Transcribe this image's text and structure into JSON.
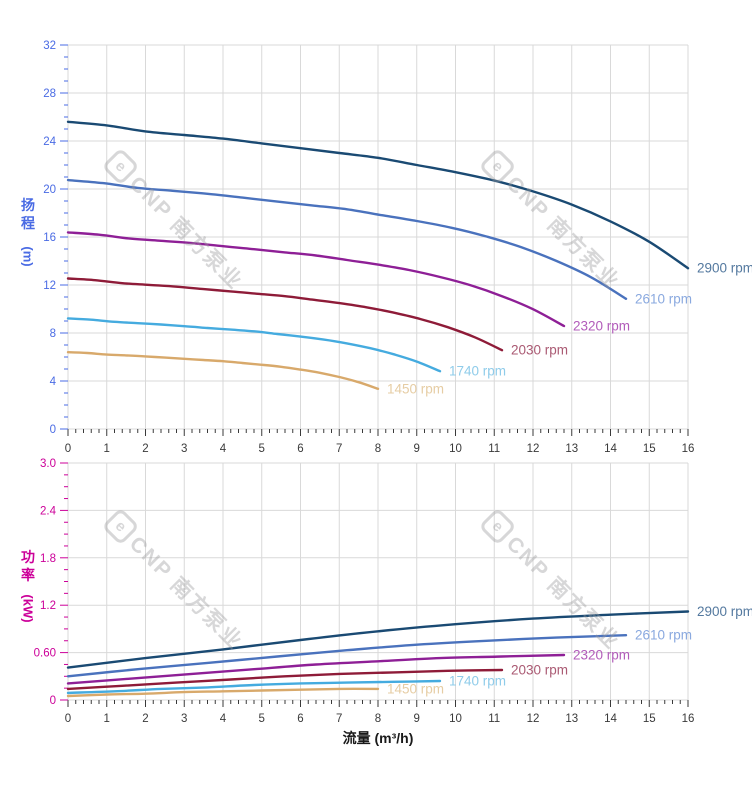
{
  "watermark": {
    "logo_letter": "e",
    "text": "CNP 南方泵业"
  },
  "axis_titles": {
    "head_y_chars": "扬程",
    "head_y_unit": "(m)",
    "power_y_chars": "功率",
    "power_y_unit": "(kW)",
    "x_title": "流量 (m³/h)"
  },
  "colors": {
    "head_axis": "#4a6be4",
    "power_axis": "#cc0099",
    "x_axis_text": "#3a3a3a",
    "grid": "#d9d9d9"
  },
  "chart_data": [
    {
      "id": "head",
      "type": "line",
      "ylabel": "扬程 (m)",
      "xlabel": "流量 (m³/h)",
      "xlim": [
        0,
        16
      ],
      "ylim": [
        0,
        32
      ],
      "grid": true,
      "legend_position": "right-of-curve-end",
      "x_tick_labels": [
        "0",
        "1",
        "2",
        "3",
        "4",
        "5",
        "6",
        "7",
        "8",
        "9",
        "10",
        "11",
        "12",
        "13",
        "14",
        "15",
        "16"
      ],
      "y_tick_labels": [
        "0",
        "4",
        "8",
        "12",
        "16",
        "20",
        "24",
        "28",
        "32"
      ],
      "y_major_step": 4,
      "y_minor_step": 1,
      "x_major_step": 1,
      "x_minor_step": 0.2,
      "axis_color": "#4a6be4",
      "series": [
        {
          "name": "2900 rpm",
          "rpm": 2900,
          "color": "#1a4a73",
          "label_color": "#54799f",
          "points": [
            [
              0,
              25.6
            ],
            [
              1,
              25.3
            ],
            [
              2,
              24.8
            ],
            [
              3,
              24.5
            ],
            [
              4,
              24.2
            ],
            [
              5,
              23.8
            ],
            [
              6,
              23.4
            ],
            [
              7,
              23.0
            ],
            [
              8,
              22.6
            ],
            [
              9,
              22.0
            ],
            [
              10,
              21.4
            ],
            [
              11,
              20.7
            ],
            [
              12,
              19.8
            ],
            [
              13,
              18.7
            ],
            [
              14,
              17.3
            ],
            [
              15,
              15.6
            ],
            [
              16,
              13.4
            ]
          ]
        },
        {
          "name": "2610 rpm",
          "rpm": 2610,
          "color": "#4a72bd",
          "label_color": "#8aa9df",
          "points": [
            [
              0,
              20.74
            ],
            [
              0.9,
              20.49
            ],
            [
              1.8,
              20.09
            ],
            [
              2.7,
              19.85
            ],
            [
              3.6,
              19.6
            ],
            [
              4.5,
              19.28
            ],
            [
              5.4,
              18.95
            ],
            [
              6.3,
              18.63
            ],
            [
              7.2,
              18.31
            ],
            [
              8.1,
              17.82
            ],
            [
              9,
              17.33
            ],
            [
              9.9,
              16.77
            ],
            [
              10.8,
              16.04
            ],
            [
              11.7,
              15.15
            ],
            [
              12.6,
              14.01
            ],
            [
              13.5,
              12.64
            ],
            [
              14.4,
              10.85
            ]
          ]
        },
        {
          "name": "2320 rpm",
          "rpm": 2320,
          "color": "#8e1f96",
          "label_color": "#b25cba",
          "points": [
            [
              0,
              16.38
            ],
            [
              0.8,
              16.19
            ],
            [
              1.6,
              15.87
            ],
            [
              2.4,
              15.68
            ],
            [
              3.2,
              15.49
            ],
            [
              4,
              15.23
            ],
            [
              4.8,
              14.98
            ],
            [
              5.6,
              14.72
            ],
            [
              6.4,
              14.46
            ],
            [
              7.2,
              14.08
            ],
            [
              8,
              13.7
            ],
            [
              8.8,
              13.25
            ],
            [
              9.6,
              12.67
            ],
            [
              10.4,
              11.97
            ],
            [
              11.2,
              11.07
            ],
            [
              12,
              9.98
            ],
            [
              12.8,
              8.58
            ]
          ]
        },
        {
          "name": "2030 rpm",
          "rpm": 2030,
          "color": "#8e1b38",
          "label_color": "#aa5a73",
          "points": [
            [
              0,
              12.54
            ],
            [
              0.7,
              12.4
            ],
            [
              1.4,
              12.15
            ],
            [
              2.1,
              12.01
            ],
            [
              2.8,
              11.86
            ],
            [
              3.5,
              11.66
            ],
            [
              4.2,
              11.47
            ],
            [
              4.9,
              11.27
            ],
            [
              5.6,
              11.07
            ],
            [
              6.3,
              10.78
            ],
            [
              7,
              10.49
            ],
            [
              7.7,
              10.14
            ],
            [
              8.4,
              9.7
            ],
            [
              9.1,
              9.16
            ],
            [
              9.8,
              8.48
            ],
            [
              10.5,
              7.64
            ],
            [
              11.2,
              6.57
            ]
          ]
        },
        {
          "name": "1740 rpm",
          "rpm": 1740,
          "color": "#45abdf",
          "label_color": "#8fccea",
          "points": [
            [
              0,
              9.22
            ],
            [
              0.6,
              9.11
            ],
            [
              1.2,
              8.93
            ],
            [
              1.8,
              8.82
            ],
            [
              2.4,
              8.71
            ],
            [
              3,
              8.57
            ],
            [
              3.6,
              8.42
            ],
            [
              4.2,
              8.28
            ],
            [
              4.8,
              8.14
            ],
            [
              5.4,
              7.92
            ],
            [
              6,
              7.7
            ],
            [
              6.6,
              7.45
            ],
            [
              7.2,
              7.13
            ],
            [
              7.8,
              6.73
            ],
            [
              8.4,
              6.23
            ],
            [
              9,
              5.62
            ],
            [
              9.6,
              4.82
            ]
          ]
        },
        {
          "name": "1450 rpm",
          "rpm": 1450,
          "color": "#d8a96b",
          "label_color": "#e6cda4",
          "points": [
            [
              0,
              6.4
            ],
            [
              0.5,
              6.33
            ],
            [
              1,
              6.2
            ],
            [
              1.5,
              6.13
            ],
            [
              2,
              6.05
            ],
            [
              2.5,
              5.95
            ],
            [
              3,
              5.85
            ],
            [
              3.5,
              5.75
            ],
            [
              4,
              5.65
            ],
            [
              4.5,
              5.5
            ],
            [
              5,
              5.35
            ],
            [
              5.5,
              5.18
            ],
            [
              6,
              4.95
            ],
            [
              6.5,
              4.68
            ],
            [
              7,
              4.33
            ],
            [
              7.5,
              3.9
            ],
            [
              8,
              3.35
            ]
          ]
        }
      ]
    },
    {
      "id": "power",
      "type": "line",
      "ylabel": "功率 (kW)",
      "xlabel": "流量 (m³/h)",
      "xlim": [
        0,
        16
      ],
      "ylim": [
        0,
        3.0
      ],
      "grid": true,
      "legend_position": "right-of-curve-end",
      "x_tick_labels": [
        "0",
        "1",
        "2",
        "3",
        "4",
        "5",
        "6",
        "7",
        "8",
        "9",
        "10",
        "11",
        "12",
        "13",
        "14",
        "15",
        "16"
      ],
      "y_tick_labels": [
        "0",
        "0.60",
        "1.2",
        "1.8",
        "2.4",
        "3.0"
      ],
      "y_major_step": 0.6,
      "y_minor_step": 0.15,
      "x_major_step": 1,
      "x_minor_step": 0.2,
      "axis_color": "#cc0099",
      "series": [
        {
          "name": "2900 rpm",
          "rpm": 2900,
          "color": "#1a4a73",
          "label_color": "#54799f",
          "points": [
            [
              0,
              0.41
            ],
            [
              2,
              0.53
            ],
            [
              4,
              0.64
            ],
            [
              6,
              0.76
            ],
            [
              8,
              0.87
            ],
            [
              10,
              0.96
            ],
            [
              12,
              1.03
            ],
            [
              14,
              1.08
            ],
            [
              16,
              1.12
            ]
          ]
        },
        {
          "name": "2610 rpm",
          "rpm": 2610,
          "color": "#4a72bd",
          "label_color": "#8aa9df",
          "points": [
            [
              0,
              0.3
            ],
            [
              1.8,
              0.39
            ],
            [
              3.6,
              0.47
            ],
            [
              5.4,
              0.55
            ],
            [
              7.2,
              0.63
            ],
            [
              9,
              0.7
            ],
            [
              10.8,
              0.75
            ],
            [
              12.6,
              0.79
            ],
            [
              14.4,
              0.82
            ]
          ]
        },
        {
          "name": "2320 rpm",
          "rpm": 2320,
          "color": "#8e1f96",
          "label_color": "#b25cba",
          "points": [
            [
              0,
              0.21
            ],
            [
              1.6,
              0.27
            ],
            [
              3.2,
              0.33
            ],
            [
              4.8,
              0.39
            ],
            [
              6.4,
              0.45
            ],
            [
              8,
              0.49
            ],
            [
              9.6,
              0.53
            ],
            [
              11.2,
              0.55
            ],
            [
              12.8,
              0.57
            ]
          ]
        },
        {
          "name": "2030 rpm",
          "rpm": 2030,
          "color": "#8e1b38",
          "label_color": "#aa5a73",
          "points": [
            [
              0,
              0.14
            ],
            [
              1.4,
              0.18
            ],
            [
              2.8,
              0.22
            ],
            [
              4.2,
              0.26
            ],
            [
              5.6,
              0.3
            ],
            [
              7,
              0.33
            ],
            [
              8.4,
              0.35
            ],
            [
              9.8,
              0.37
            ],
            [
              11.2,
              0.38
            ]
          ]
        },
        {
          "name": "1740 rpm",
          "rpm": 1740,
          "color": "#45abdf",
          "label_color": "#8fccea",
          "points": [
            [
              0,
              0.09
            ],
            [
              1.2,
              0.11
            ],
            [
              2.4,
              0.14
            ],
            [
              3.6,
              0.16
            ],
            [
              4.8,
              0.19
            ],
            [
              6,
              0.21
            ],
            [
              7.2,
              0.22
            ],
            [
              8.4,
              0.23
            ],
            [
              9.6,
              0.24
            ]
          ]
        },
        {
          "name": "1450 rpm",
          "rpm": 1450,
          "color": "#d8a96b",
          "label_color": "#e6cda4",
          "points": [
            [
              0,
              0.05
            ],
            [
              1,
              0.07
            ],
            [
              2,
              0.08
            ],
            [
              3,
              0.1
            ],
            [
              4,
              0.11
            ],
            [
              5,
              0.12
            ],
            [
              6,
              0.13
            ],
            [
              7,
              0.14
            ],
            [
              8,
              0.14
            ]
          ]
        }
      ]
    }
  ]
}
